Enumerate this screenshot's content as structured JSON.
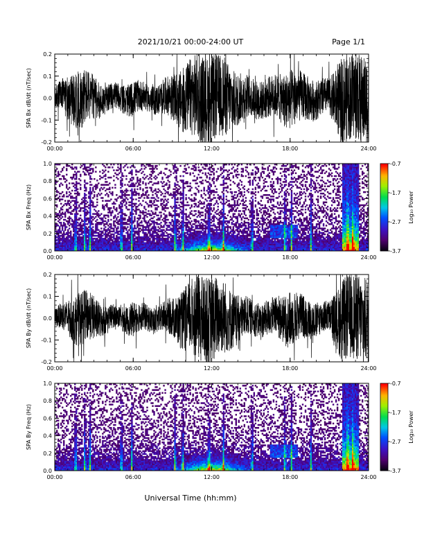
{
  "header": {
    "title": "2021/10/21  00:00-24:00 UT",
    "page": "Page 1/1"
  },
  "chart_data": [
    {
      "type": "line",
      "ylabel": "SPA Bx dB/dt (nT/sec)",
      "xlim": [
        "00:00",
        "24:00"
      ],
      "ylim": [
        -0.2,
        0.2
      ],
      "x_ticks": [
        "00:00",
        "06:00",
        "12:00",
        "18:00",
        "24:00"
      ],
      "y_ticks": [
        "-0.2",
        "-0.1",
        "0.0",
        "0.1",
        "0.2"
      ],
      "series": [
        {
          "envelope_hours": [
            0,
            1,
            2,
            3,
            4,
            5,
            6,
            7,
            8,
            9,
            10,
            11,
            12,
            13,
            14,
            15,
            16,
            17,
            18,
            19,
            20,
            21,
            22,
            23,
            24
          ],
          "amplitude": [
            0.05,
            0.1,
            0.14,
            0.1,
            0.06,
            0.06,
            0.08,
            0.06,
            0.07,
            0.1,
            0.16,
            0.2,
            0.2,
            0.18,
            0.12,
            0.09,
            0.09,
            0.1,
            0.14,
            0.11,
            0.09,
            0.08,
            0.2,
            0.2,
            0.2
          ]
        }
      ]
    },
    {
      "type": "heatmap",
      "ylabel": "SPA Bx Freq (Hz)",
      "xlim": [
        "00:00",
        "24:00"
      ],
      "ylim": [
        0.0,
        1.0
      ],
      "x_ticks": [
        "00:00",
        "06:00",
        "12:00",
        "18:00",
        "24:00"
      ],
      "y_ticks": [
        "0.0",
        "0.2",
        "0.4",
        "0.6",
        "0.8",
        "1.0"
      ],
      "colorbar": {
        "label": "Log₁₀ Power",
        "ticks": [
          "-0.7",
          "-1.7",
          "-2.7",
          "-3.7"
        ],
        "range": [
          -3.7,
          -0.7
        ]
      },
      "bright_hours": [
        1.6,
        2.3,
        2.7,
        5.1,
        5.9,
        9.2,
        9.8,
        11.8,
        12.9,
        15.1,
        17.6,
        18.1,
        19.6,
        22.4,
        22.8
      ]
    },
    {
      "type": "line",
      "ylabel": "SPA By dB/dt (nT/sec)",
      "xlim": [
        "00:00",
        "24:00"
      ],
      "ylim": [
        -0.2,
        0.2
      ],
      "x_ticks": [
        "00:00",
        "06:00",
        "12:00",
        "18:00",
        "24:00"
      ],
      "y_ticks": [
        "-0.2",
        "-0.1",
        "0.0",
        "0.1",
        "0.2"
      ],
      "series": [
        {
          "envelope_hours": [
            0,
            1,
            2,
            3,
            4,
            5,
            6,
            7,
            8,
            9,
            10,
            11,
            12,
            13,
            14,
            15,
            16,
            17,
            18,
            19,
            20,
            21,
            22,
            23,
            24
          ],
          "amplitude": [
            0.04,
            0.08,
            0.13,
            0.1,
            0.06,
            0.05,
            0.08,
            0.06,
            0.06,
            0.09,
            0.15,
            0.2,
            0.2,
            0.17,
            0.11,
            0.08,
            0.08,
            0.09,
            0.13,
            0.1,
            0.08,
            0.07,
            0.19,
            0.2,
            0.2
          ]
        }
      ]
    },
    {
      "type": "heatmap",
      "ylabel": "SPA By Freq (Hz)",
      "xlim": [
        "00:00",
        "24:00"
      ],
      "ylim": [
        0.0,
        1.0
      ],
      "x_ticks": [
        "00:00",
        "06:00",
        "12:00",
        "18:00",
        "24:00"
      ],
      "y_ticks": [
        "0.0",
        "0.2",
        "0.4",
        "0.6",
        "0.8",
        "1.0"
      ],
      "colorbar": {
        "label": "Log₁₀ Power",
        "ticks": [
          "-0.7",
          "-1.7",
          "-2.7",
          "-3.7"
        ],
        "range": [
          -3.7,
          -0.7
        ]
      },
      "bright_hours": [
        1.6,
        2.3,
        2.7,
        5.1,
        5.9,
        9.2,
        9.8,
        11.8,
        12.9,
        15.1,
        17.6,
        18.1,
        19.6,
        22.4,
        22.8
      ]
    }
  ],
  "footer": {
    "xlabel": "Universal Time (hh:mm)"
  }
}
